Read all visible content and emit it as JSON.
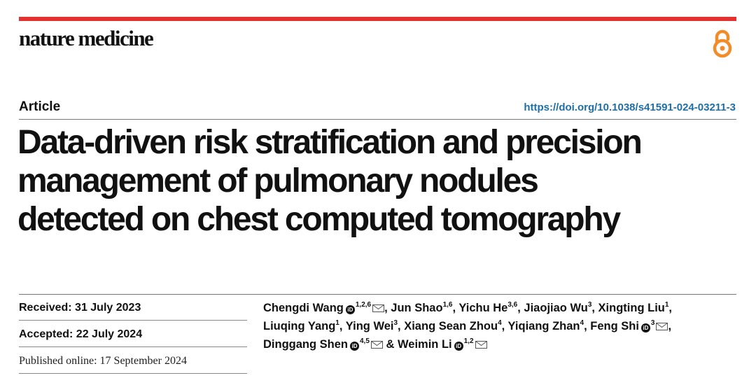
{
  "header": {
    "journal": "nature medicine",
    "open_access_icon": "open-access-lock-icon",
    "accent_color": "#e2312f",
    "oa_color": "#f28c28"
  },
  "article": {
    "type": "Article",
    "doi": "https://doi.org/10.1038/s41591-024-03211-3",
    "title_lines": [
      "Data-driven risk stratification and precision",
      "management of pulmonary nodules",
      "detected on chest computed tomography"
    ]
  },
  "dates": {
    "received": "Received: 31 July 2023",
    "accepted": "Accepted: 22 July 2024",
    "published": "Published online: 17 September 2024"
  },
  "authors": [
    {
      "name": "Chengdi Wang",
      "aff": "1,2,6",
      "orcid": true,
      "corresponding": true,
      "sep": ", "
    },
    {
      "name": "Jun Shao",
      "aff": "1,6",
      "orcid": false,
      "corresponding": false,
      "sep": ", "
    },
    {
      "name": "Yichu He",
      "aff": "3,6",
      "orcid": false,
      "corresponding": false,
      "sep": ", "
    },
    {
      "name": "Jiaojiao Wu",
      "aff": "3",
      "orcid": false,
      "corresponding": false,
      "sep": ", "
    },
    {
      "name": "Xingting Liu",
      "aff": "1",
      "orcid": false,
      "corresponding": false,
      "sep": ","
    },
    {
      "name": "Liuqing Yang",
      "aff": "1",
      "orcid": false,
      "corresponding": false,
      "sep": ", "
    },
    {
      "name": "Ying Wei",
      "aff": "3",
      "orcid": false,
      "corresponding": false,
      "sep": ", "
    },
    {
      "name": "Xiang Sean Zhou",
      "aff": "4",
      "orcid": false,
      "corresponding": false,
      "sep": ", "
    },
    {
      "name": "Yiqiang Zhan",
      "aff": "4",
      "orcid": false,
      "corresponding": false,
      "sep": ", "
    },
    {
      "name": "Feng Shi",
      "aff": "3",
      "orcid": true,
      "corresponding": true,
      "sep": ","
    },
    {
      "name": "Dinggang Shen",
      "aff": "4,5",
      "orcid": true,
      "corresponding": true,
      "sep": " & "
    },
    {
      "name": "Weimin Li",
      "aff": "1,2",
      "orcid": true,
      "corresponding": true,
      "sep": ""
    }
  ],
  "author_lines": [
    [
      0,
      1,
      2,
      3,
      4
    ],
    [
      5,
      6,
      7,
      8,
      9
    ],
    [
      10,
      11
    ]
  ]
}
